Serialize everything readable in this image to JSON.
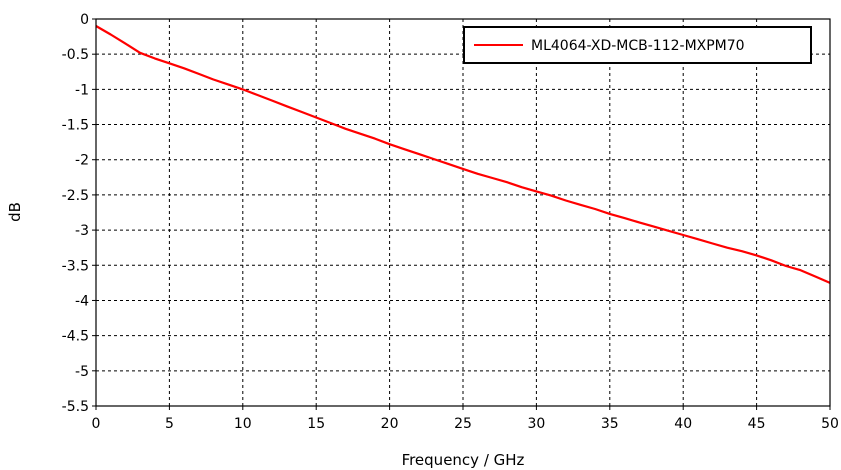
{
  "chart_data": {
    "type": "line",
    "title": "",
    "xlabel": "Frequency / GHz",
    "ylabel": "dB",
    "xlim": [
      0,
      50
    ],
    "ylim": [
      -5.5,
      0
    ],
    "xticks": [
      0,
      5,
      10,
      15,
      20,
      25,
      30,
      35,
      40,
      45,
      50
    ],
    "xtick_labels": [
      "0",
      "5",
      "10",
      "15",
      "20",
      "25",
      "30",
      "35",
      "40",
      "45",
      "50"
    ],
    "yticks": [
      0,
      -0.5,
      -1,
      -1.5,
      -2,
      -2.5,
      -3,
      -3.5,
      -4,
      -4.5,
      -5,
      -5.5
    ],
    "ytick_labels": [
      "0",
      "-0.5",
      "-1",
      "-1.5",
      "-2",
      "-2.5",
      "-3",
      "-3.5",
      "-4",
      "-4.5",
      "-5",
      "-5.5"
    ],
    "grid": true,
    "grid_style": "dashed",
    "legend_position": "top-right",
    "series": [
      {
        "name": "ML4064-XD-MCB-112-MXPM70",
        "color": "#ff0000",
        "x": [
          0,
          1,
          2,
          3,
          4,
          5,
          6,
          7,
          8,
          9,
          10,
          11,
          12,
          13,
          14,
          15,
          16,
          17,
          18,
          19,
          20,
          21,
          22,
          23,
          24,
          25,
          26,
          27,
          28,
          29,
          30,
          31,
          32,
          33,
          34,
          35,
          36,
          37,
          38,
          39,
          40,
          41,
          42,
          43,
          44,
          45,
          46,
          47,
          48,
          49,
          50
        ],
        "y": [
          -0.1,
          -0.22,
          -0.35,
          -0.48,
          -0.56,
          -0.63,
          -0.7,
          -0.78,
          -0.86,
          -0.93,
          -1.0,
          -1.08,
          -1.16,
          -1.24,
          -1.32,
          -1.4,
          -1.48,
          -1.56,
          -1.63,
          -1.7,
          -1.78,
          -1.85,
          -1.92,
          -1.99,
          -2.06,
          -2.13,
          -2.2,
          -2.26,
          -2.32,
          -2.39,
          -2.45,
          -2.51,
          -2.58,
          -2.64,
          -2.7,
          -2.77,
          -2.83,
          -2.89,
          -2.95,
          -3.01,
          -3.07,
          -3.13,
          -3.19,
          -3.25,
          -3.3,
          -3.36,
          -3.43,
          -3.51,
          -3.57,
          -3.66,
          -3.75
        ]
      }
    ]
  }
}
